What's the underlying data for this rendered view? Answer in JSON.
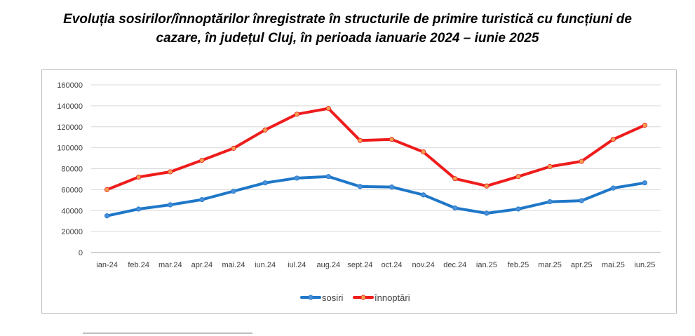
{
  "chart_data": {
    "type": "line",
    "title": "Evoluția sosirilor/înnoptărilor înregistrate în structurile de primire turistică cu funcțiuni de cazare, în județul Cluj, în perioada ianuarie 2024 – iunie 2025",
    "title_line1": "Evoluția sosirilor/înnoptărilor înregistrate în structurile de primire turistică cu funcțiuni de",
    "title_line2": "cazare, în județul Cluj, în perioada ianuarie 2024 – iunie 2025",
    "categories": [
      "ian-24",
      "feb.24",
      "mar.24",
      "apr.24",
      "mai.24",
      "iun.24",
      "iul.24",
      "aug.24",
      "sept.24",
      "oct.24",
      "nov.24",
      "dec.24",
      "ian.25",
      "feb.25",
      "mar.25",
      "apr.25",
      "mai.25",
      "iun.25"
    ],
    "series": [
      {
        "name": "sosiri",
        "color": "#1f77c8",
        "marker_color": "#4a90d9",
        "values": [
          35000,
          41500,
          45500,
          50500,
          58500,
          66500,
          71000,
          72500,
          63000,
          62500,
          55000,
          42500,
          37500,
          41500,
          48500,
          49500,
          61500,
          66500
        ]
      },
      {
        "name": "înnoptări",
        "color": "#ee1c1c",
        "marker_color": "#f0a050",
        "values": [
          60000,
          72000,
          77000,
          88000,
          99500,
          117000,
          132000,
          137500,
          107000,
          108000,
          96000,
          70500,
          63500,
          72500,
          82000,
          87000,
          108000,
          121500
        ]
      }
    ],
    "ylim": [
      0,
      160000
    ],
    "yticks": [
      0,
      20000,
      40000,
      60000,
      80000,
      100000,
      120000,
      140000,
      160000
    ],
    "xlabel": "",
    "ylabel": "",
    "grid": true,
    "legend_position": "bottom-center"
  }
}
